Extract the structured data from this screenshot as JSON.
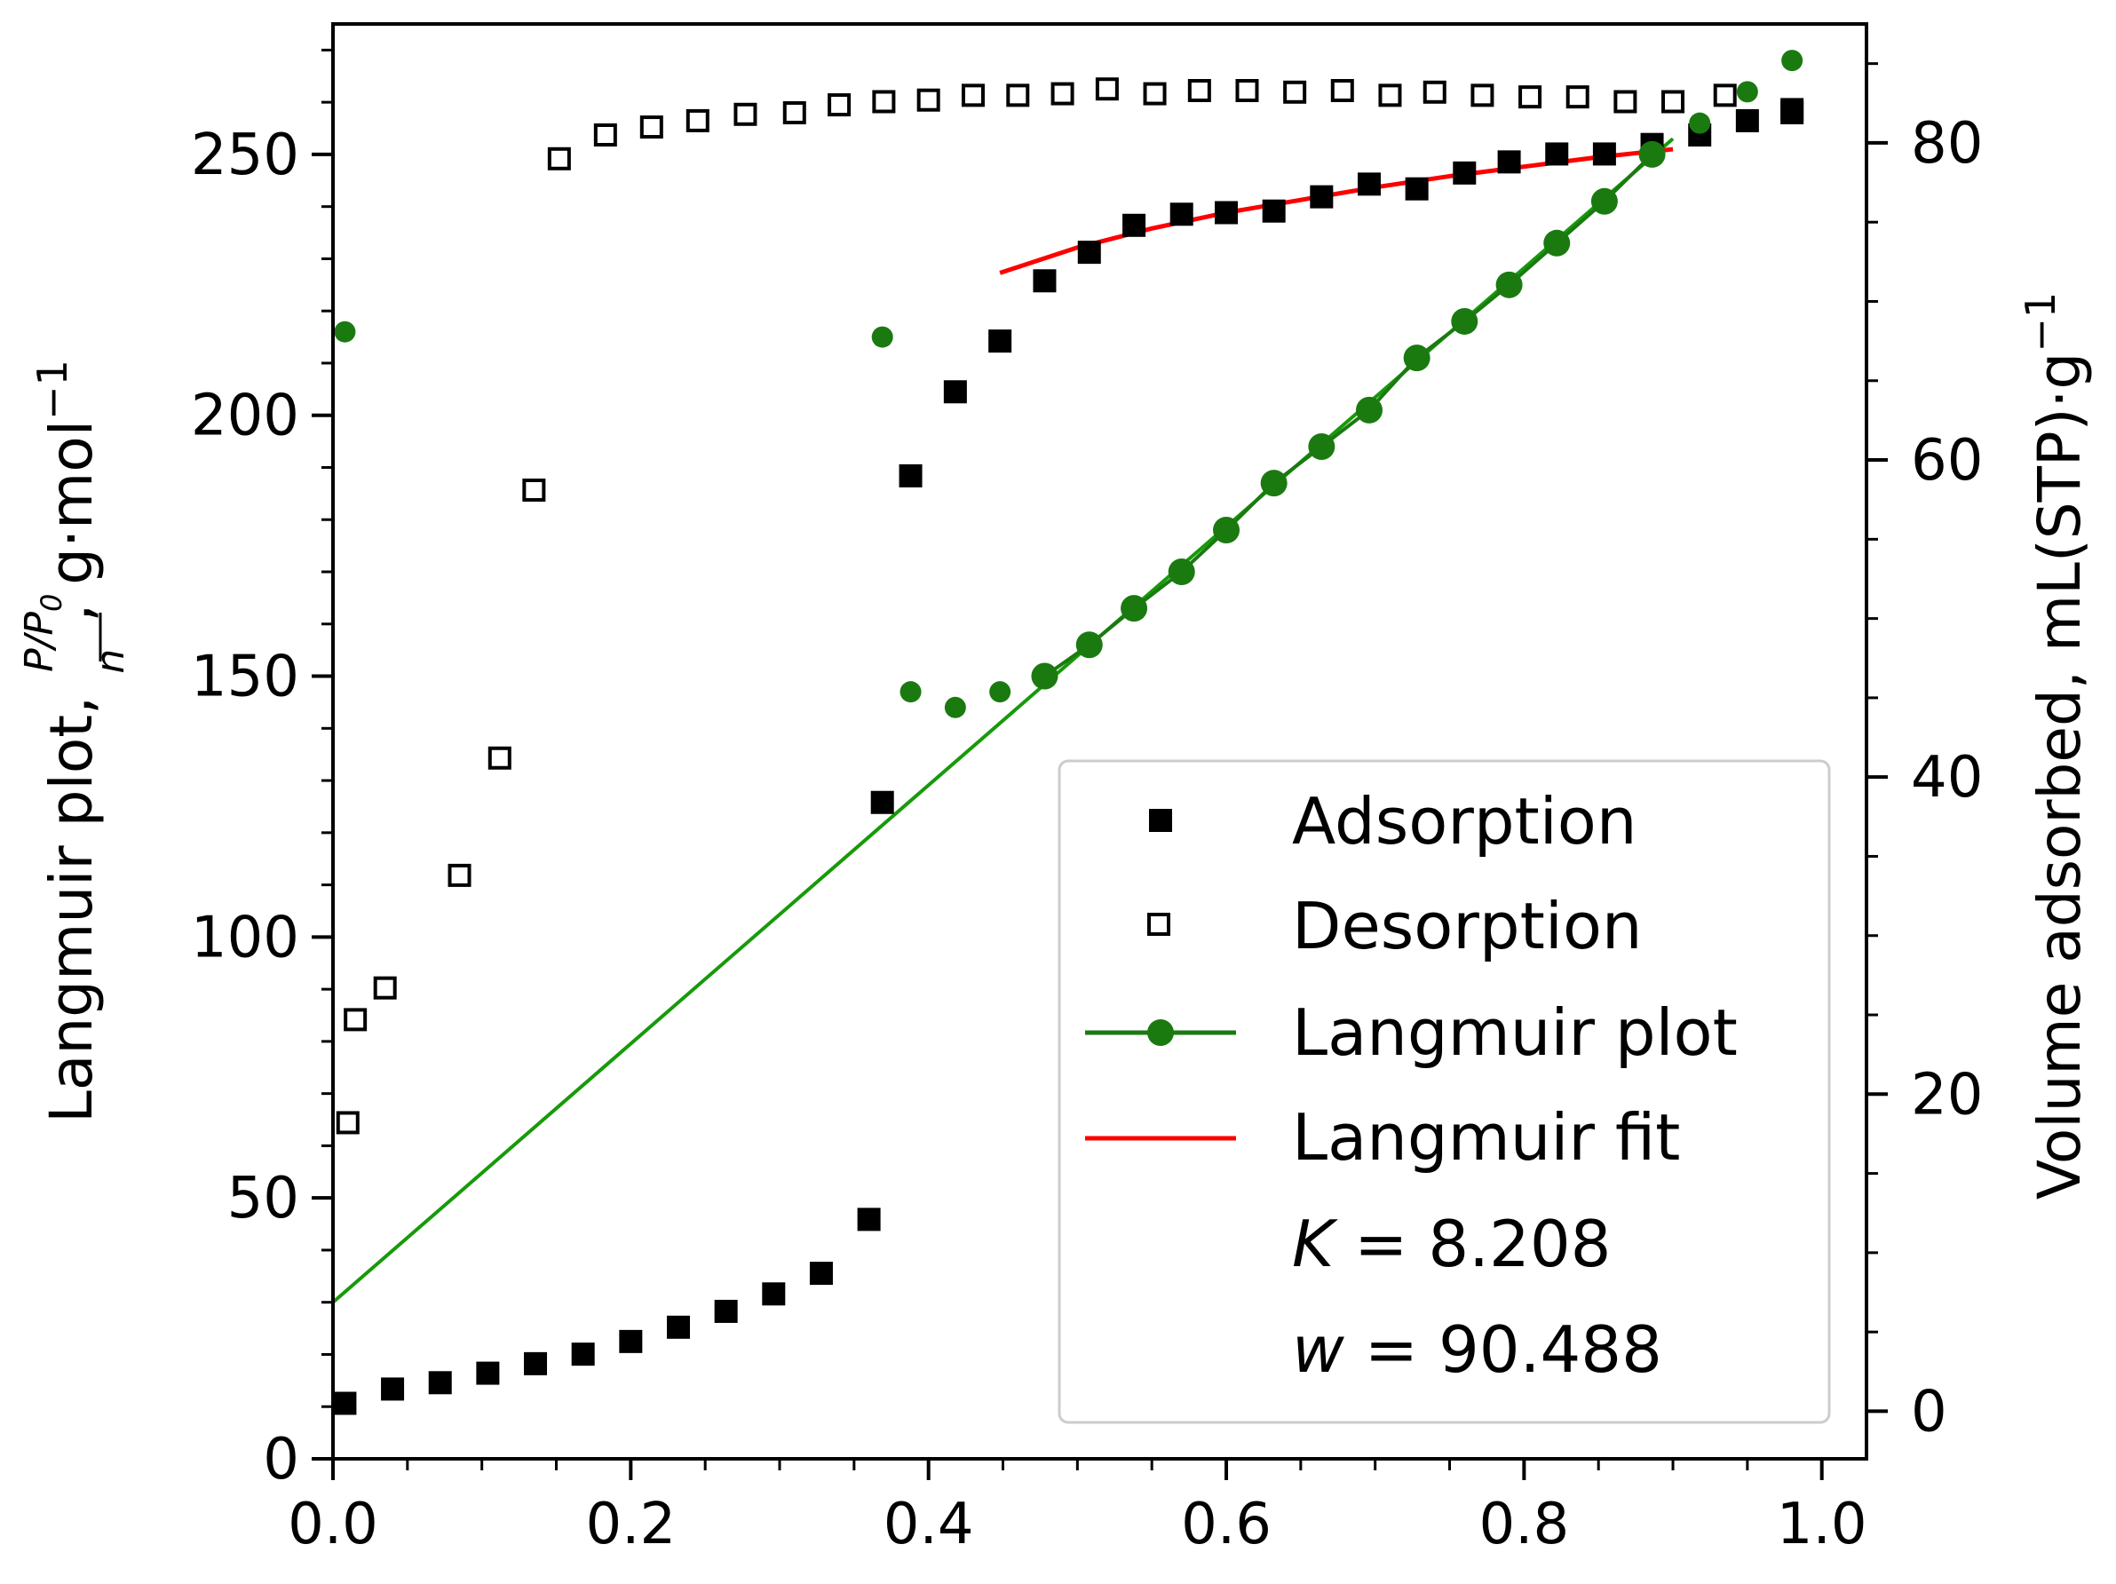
{
  "chart_data": {
    "type": "scatter",
    "x_axis": {
      "label": "",
      "range": [
        0.0,
        1.03
      ],
      "ticks": [
        0.0,
        0.2,
        0.4,
        0.6,
        0.8,
        1.0
      ],
      "tick_labels": [
        "0.0",
        "0.2",
        "0.4",
        "0.6",
        "0.8",
        "1.0"
      ]
    },
    "y_left": {
      "label_prefix": "Langmuir plot, ",
      "label_frac_num": "P/P",
      "label_frac_num_sub": "0",
      "label_frac_den": "n",
      "label_suffix": ", g·mol",
      "label_suffix_sup": "−1",
      "range": [
        0,
        275
      ],
      "ticks": [
        0,
        50,
        100,
        150,
        200,
        250
      ],
      "tick_labels": [
        "0",
        "50",
        "100",
        "150",
        "200",
        "250"
      ]
    },
    "y_right": {
      "label": "Volume adsorbed, mL(STP)·g",
      "label_sup": "−1",
      "range": [
        -3,
        87.5
      ],
      "ticks": [
        0,
        20,
        40,
        60,
        80
      ],
      "tick_labels": [
        "0",
        "20",
        "40",
        "60",
        "80"
      ]
    },
    "series": [
      {
        "name": "Adsorption",
        "axis": "right",
        "marker": "filled-square",
        "color": "#000000",
        "x": [
          0.008,
          0.04,
          0.072,
          0.104,
          0.136,
          0.168,
          0.2,
          0.232,
          0.264,
          0.296,
          0.328,
          0.36,
          0.369,
          0.388,
          0.418,
          0.448,
          0.478,
          0.508,
          0.538,
          0.57,
          0.6,
          0.632,
          0.664,
          0.696,
          0.728,
          0.76,
          0.79,
          0.822,
          0.854,
          0.886,
          0.918,
          0.95,
          0.98
        ],
        "y": [
          0.5,
          1.4,
          1.8,
          2.4,
          3.0,
          3.6,
          4.4,
          5.3,
          6.3,
          7.4,
          8.7,
          12.1,
          38.4,
          59.0,
          64.3,
          67.5,
          71.3,
          73.1,
          74.8,
          75.5,
          75.6,
          75.7,
          76.6,
          77.4,
          77.1,
          78.1,
          78.8,
          79.3,
          79.3,
          79.9,
          80.5,
          81.4,
          81.9
        ]
      },
      {
        "name": "Desorption",
        "axis": "right",
        "marker": "open-square",
        "color": "#000000",
        "x": [
          0.01,
          0.015,
          0.035,
          0.085,
          0.112,
          0.135,
          0.152,
          0.183,
          0.214,
          0.245,
          0.277,
          0.31,
          0.34,
          0.37,
          0.4,
          0.43,
          0.46,
          0.49,
          0.52,
          0.552,
          0.582,
          0.614,
          0.646,
          0.678,
          0.71,
          0.74,
          0.772,
          0.804,
          0.836,
          0.868,
          0.9,
          0.935,
          0.98
        ],
        "y": [
          18.2,
          24.7,
          26.7,
          33.8,
          41.2,
          58.1,
          79.0,
          80.5,
          81.0,
          81.4,
          81.8,
          81.9,
          82.4,
          82.6,
          82.7,
          83.0,
          83.0,
          83.1,
          83.4,
          83.1,
          83.3,
          83.3,
          83.2,
          83.3,
          83.0,
          83.2,
          83.0,
          82.9,
          82.9,
          82.6,
          82.6,
          83.0,
          82.1
        ]
      },
      {
        "name": "Langmuir plot",
        "axis": "left",
        "marker": "filled-circle",
        "color": "#1a7a10",
        "x": [
          0.008,
          0.369,
          0.388,
          0.418,
          0.448,
          0.478,
          0.508,
          0.538,
          0.57,
          0.6,
          0.632,
          0.664,
          0.696,
          0.728,
          0.76,
          0.79,
          0.822,
          0.854,
          0.886,
          0.918,
          0.95,
          0.98
        ],
        "y": [
          216,
          215,
          147,
          144,
          147,
          150,
          156,
          163,
          170,
          178,
          187,
          194,
          201,
          211,
          218,
          225,
          233,
          241,
          250,
          256,
          262,
          268
        ],
        "fit_line": {
          "x": [
            0.0,
            0.9
          ],
          "y": [
            30,
            253
          ],
          "color": "#179a0a"
        }
      },
      {
        "name": "Langmuir fit",
        "axis": "right",
        "type": "line",
        "color": "#ff0000",
        "x": [
          0.448,
          0.5,
          0.55,
          0.6,
          0.65,
          0.7,
          0.75,
          0.8,
          0.85,
          0.9
        ],
        "y": [
          71.8,
          73.4,
          74.6,
          75.6,
          76.4,
          77.2,
          77.9,
          78.5,
          79.1,
          79.6
        ]
      }
    ],
    "legend": {
      "position": "lower-right",
      "entries": [
        "Adsorption",
        "Desorption",
        "Langmuir plot",
        "Langmuir fit"
      ],
      "params": [
        {
          "symbol": "K",
          "text": " = 8.208"
        },
        {
          "symbol": "w",
          "text": " = 90.488"
        }
      ]
    }
  }
}
